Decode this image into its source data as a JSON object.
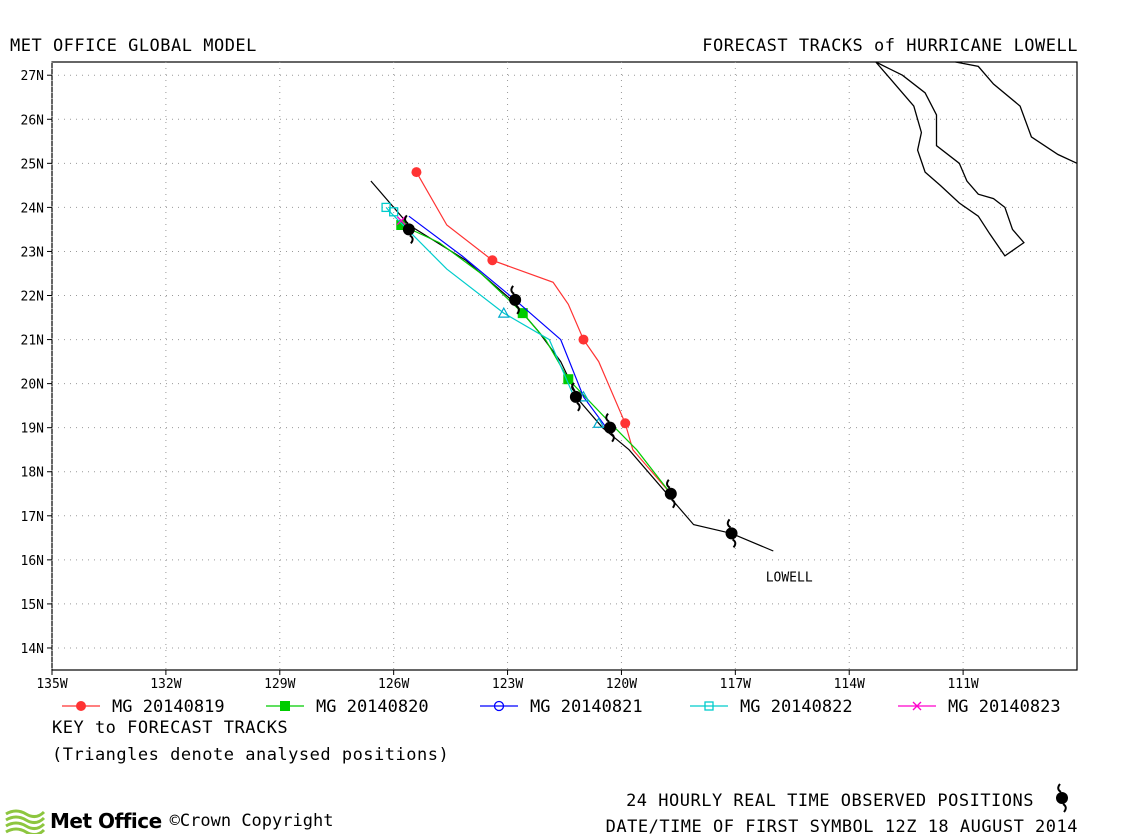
{
  "header": {
    "left_title": "MET OFFICE GLOBAL MODEL",
    "right_title": "FORECAST TRACKS of HURRICANE LOWELL"
  },
  "map": {
    "lon_range": [
      -135,
      -108
    ],
    "lat_range": [
      13.5,
      27.3
    ],
    "lon_ticks": [
      {
        "value": -135,
        "label": "135W"
      },
      {
        "value": -132,
        "label": "132W"
      },
      {
        "value": -129,
        "label": "129W"
      },
      {
        "value": -126,
        "label": "126W"
      },
      {
        "value": -123,
        "label": "123W"
      },
      {
        "value": -120,
        "label": "120W"
      },
      {
        "value": -117,
        "label": "117W"
      },
      {
        "value": -114,
        "label": "114W"
      },
      {
        "value": -111,
        "label": "111W"
      }
    ],
    "lat_ticks": [
      {
        "value": 27,
        "label": "27N"
      },
      {
        "value": 26,
        "label": "26N"
      },
      {
        "value": 25,
        "label": "25N"
      },
      {
        "value": 24,
        "label": "24N"
      },
      {
        "value": 23,
        "label": "23N"
      },
      {
        "value": 22,
        "label": "22N"
      },
      {
        "value": 21,
        "label": "21N"
      },
      {
        "value": 20,
        "label": "20N"
      },
      {
        "value": 19,
        "label": "19N"
      },
      {
        "value": 18,
        "label": "18N"
      },
      {
        "value": 17,
        "label": "17N"
      },
      {
        "value": 16,
        "label": "16N"
      },
      {
        "value": 15,
        "label": "15N"
      },
      {
        "value": 14,
        "label": "14N"
      }
    ],
    "storm_label": "LOWELL",
    "colors": {
      "observed": "#000000"
    }
  },
  "tracks": [
    {
      "label": "MG 20140819",
      "color": "#ff3333",
      "marker": "circle-filled",
      "points": [
        [
          -118.7,
          17.5
        ],
        [
          -119.7,
          18.5
        ],
        [
          -119.9,
          19.1
        ],
        [
          -120.6,
          20.5
        ],
        [
          -121.0,
          21.0
        ],
        [
          -121.4,
          21.8
        ],
        [
          -121.8,
          22.3
        ],
        [
          -123.4,
          22.8
        ],
        [
          -124.6,
          23.6
        ],
        [
          -125.4,
          24.8
        ]
      ],
      "markers": [
        [
          -118.7,
          17.5
        ],
        [
          -119.9,
          19.1
        ],
        [
          -121.0,
          21.0
        ],
        [
          -123.4,
          22.8
        ],
        [
          -125.4,
          24.8
        ]
      ]
    },
    {
      "label": "MG 20140820",
      "color": "#00cc00",
      "marker": "square-filled",
      "points": [
        [
          -118.7,
          17.5
        ],
        [
          -119.6,
          18.5
        ],
        [
          -120.4,
          19.2
        ],
        [
          -121.4,
          20.1
        ],
        [
          -122.0,
          21.0
        ],
        [
          -122.6,
          21.6
        ],
        [
          -123.7,
          22.5
        ],
        [
          -124.8,
          23.2
        ],
        [
          -125.8,
          23.6
        ]
      ],
      "markers": [
        [
          -121.4,
          20.1
        ],
        [
          -122.6,
          21.6
        ],
        [
          -125.8,
          23.6
        ]
      ]
    },
    {
      "label": "MG 20140821",
      "color": "#0000ff",
      "marker": "circle-open",
      "points": [
        [
          -120.4,
          19.0
        ],
        [
          -121.0,
          19.7
        ],
        [
          -121.6,
          21.0
        ],
        [
          -122.8,
          21.9
        ],
        [
          -124.2,
          22.9
        ],
        [
          -125.6,
          23.8
        ]
      ],
      "markers": [
        [
          -122.8,
          21.9
        ]
      ]
    },
    {
      "label": "MG 20140822",
      "color": "#00cccc",
      "marker": "square-open",
      "points": [
        [
          -121.3,
          19.8
        ],
        [
          -121.9,
          21.0
        ],
        [
          -123.1,
          21.6
        ],
        [
          -124.6,
          22.6
        ],
        [
          -126.1,
          23.9
        ],
        [
          -126.2,
          24.0
        ]
      ],
      "markers": [
        [
          -126.0,
          23.9
        ],
        [
          -126.2,
          24.0
        ]
      ]
    },
    {
      "label": "MG 20140823",
      "color": "#ff00cc",
      "marker": "cross",
      "points": [
        [
          -125.8,
          23.7
        ]
      ],
      "markers": [
        [
          -125.8,
          23.7
        ]
      ]
    }
  ],
  "observed": {
    "points": [
      [
        -116.0,
        16.2
      ],
      [
        -117.1,
        16.6
      ],
      [
        -118.1,
        16.8
      ],
      [
        -118.7,
        17.4
      ],
      [
        -119.8,
        18.5
      ],
      [
        -120.5,
        19.0
      ],
      [
        -121.1,
        19.6
      ],
      [
        -121.6,
        20.5
      ],
      [
        -122.2,
        21.2
      ],
      [
        -122.9,
        21.9
      ],
      [
        -124.1,
        22.8
      ],
      [
        -125.6,
        23.6
      ],
      [
        -126.6,
        24.6
      ]
    ],
    "symbols": [
      [
        -117.1,
        16.6
      ],
      [
        -118.7,
        17.5
      ],
      [
        -120.3,
        19.0
      ],
      [
        -121.2,
        19.7
      ],
      [
        -122.8,
        21.9
      ],
      [
        -125.6,
        23.5
      ]
    ],
    "triangles": [
      [
        -123.1,
        21.6
      ],
      [
        -121.0,
        19.7
      ],
      [
        -120.6,
        19.1
      ]
    ]
  },
  "coast": [
    [
      [
        -113.3,
        27.3
      ],
      [
        -112.6,
        27.0
      ],
      [
        -112.0,
        26.6
      ],
      [
        -111.7,
        26.1
      ],
      [
        -111.7,
        25.4
      ],
      [
        -111.1,
        25.0
      ],
      [
        -110.9,
        24.6
      ],
      [
        -110.6,
        24.3
      ],
      [
        -110.2,
        24.2
      ],
      [
        -109.9,
        24.0
      ],
      [
        -109.7,
        23.5
      ],
      [
        -109.4,
        23.2
      ],
      [
        -109.9,
        22.9
      ],
      [
        -110.3,
        23.4
      ],
      [
        -110.6,
        23.8
      ],
      [
        -111.1,
        24.1
      ],
      [
        -111.6,
        24.5
      ],
      [
        -112.0,
        24.8
      ],
      [
        -112.2,
        25.3
      ],
      [
        -112.1,
        25.7
      ],
      [
        -112.3,
        26.3
      ],
      [
        -112.7,
        26.7
      ],
      [
        -113.0,
        27.0
      ],
      [
        -113.3,
        27.3
      ]
    ],
    [
      [
        -111.2,
        27.3
      ],
      [
        -110.6,
        27.2
      ],
      [
        -110.2,
        26.8
      ],
      [
        -109.5,
        26.3
      ],
      [
        -109.2,
        25.6
      ],
      [
        -108.5,
        25.2
      ],
      [
        -108.0,
        25.0
      ]
    ]
  ],
  "legend_key": "KEY to FORECAST TRACKS",
  "legend_note": "(Triangles denote analysed positions)",
  "footer": {
    "observed_label": "24 HOURLY REAL TIME OBSERVED POSITIONS",
    "date_label": "DATE/TIME OF FIRST SYMBOL 12Z 18 AUGUST 2014",
    "logo_text": "Met Office",
    "copyright": "©Crown Copyright"
  }
}
